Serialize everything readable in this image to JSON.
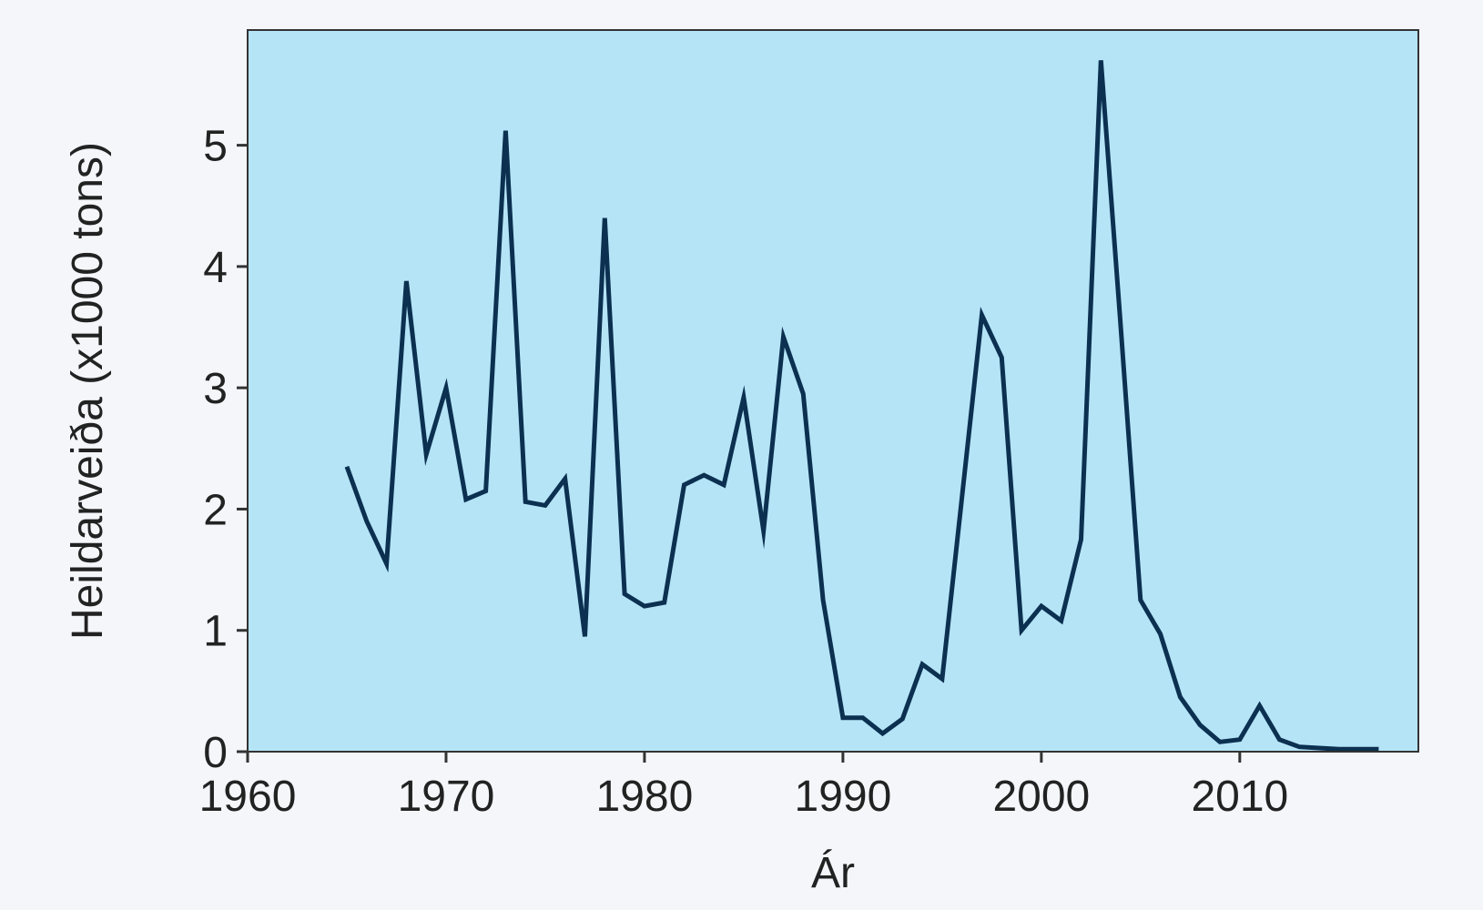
{
  "colors": {
    "page_background": "#f4f6fa",
    "plot_background": "#b5e4f7",
    "line": "#0b3050",
    "axis": "#333333",
    "text": "#222222"
  },
  "chart_data": {
    "type": "line",
    "title": "",
    "xlabel": "Ár",
    "ylabel": "Heildarveiða (x1000 tons)",
    "xlim": [
      1960,
      2019
    ],
    "ylim": [
      0,
      5.95
    ],
    "xticks": [
      1960,
      1970,
      1980,
      1990,
      2000,
      2010
    ],
    "yticks": [
      0,
      1,
      2,
      3,
      4,
      5
    ],
    "grid": false,
    "legend": "none",
    "series": [
      {
        "x": [
          1965,
          1966,
          1967,
          1968,
          1969,
          1970,
          1971,
          1972,
          1973,
          1974,
          1975,
          1976,
          1977,
          1978,
          1979,
          1980,
          1981,
          1982,
          1983,
          1984,
          1985,
          1986,
          1987,
          1988,
          1989,
          1990,
          1991,
          1992,
          1993,
          1994,
          1995,
          1996,
          1997,
          1998,
          1999,
          2000,
          2001,
          2002,
          2003,
          2004,
          2005,
          2006,
          2007,
          2008,
          2009,
          2010,
          2011,
          2012,
          2013,
          2014,
          2015,
          2016,
          2017
        ],
        "values": [
          2.35,
          1.9,
          1.55,
          3.88,
          2.45,
          3.0,
          2.08,
          2.15,
          5.12,
          2.06,
          2.03,
          2.25,
          0.95,
          4.4,
          1.3,
          1.2,
          1.23,
          2.2,
          2.28,
          2.2,
          2.92,
          1.82,
          3.42,
          2.95,
          1.25,
          0.28,
          0.28,
          0.15,
          0.27,
          0.72,
          0.6,
          2.1,
          3.6,
          3.25,
          1.0,
          1.2,
          1.08,
          1.75,
          5.7,
          3.5,
          1.25,
          0.97,
          0.45,
          0.22,
          0.08,
          0.1,
          0.38,
          0.1,
          0.04,
          0.03,
          0.02,
          0.02,
          0.02
        ]
      }
    ]
  }
}
